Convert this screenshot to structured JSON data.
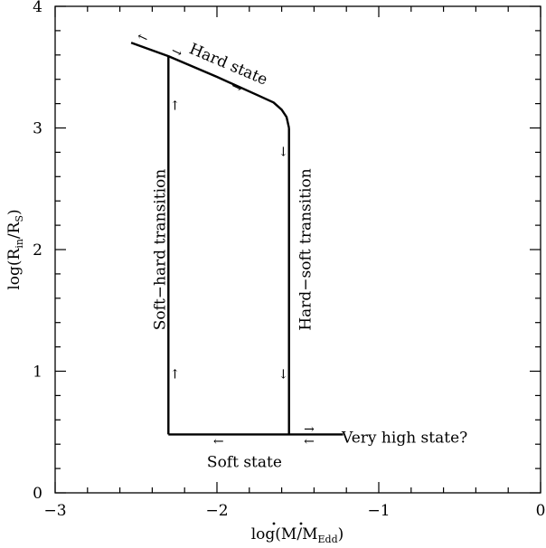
{
  "chart_data": {
    "type": "line",
    "title": "",
    "xlabel": {
      "base": "log(",
      "m1": "M",
      "slash": "/",
      "m2": "M",
      "sub": "Edd",
      "close": ")"
    },
    "ylabel": {
      "base": "log(R",
      "sub1": "in",
      "slash": "/R",
      "sub2": "S",
      "close": ")"
    },
    "xlim": [
      -3,
      0
    ],
    "ylim": [
      0,
      4
    ],
    "x_ticks": [
      -3,
      -2,
      -1,
      0
    ],
    "x_tick_labels": [
      "−3",
      "−2",
      "−1",
      "0"
    ],
    "y_ticks": [
      0,
      1,
      2,
      3,
      4
    ],
    "y_tick_labels": [
      "0",
      "1",
      "2",
      "3",
      "4"
    ],
    "curves": [
      {
        "id": "hard-state-curve",
        "points": [
          [
            -2.53,
            3.7
          ],
          [
            -2.3,
            3.59
          ],
          [
            -2.0,
            3.42
          ],
          [
            -1.75,
            3.27
          ],
          [
            -1.65,
            3.21
          ],
          [
            -1.6,
            3.15
          ],
          [
            -1.57,
            3.09
          ],
          [
            -1.555,
            3.0
          ]
        ]
      },
      {
        "id": "soft-hard-transition-line",
        "points": [
          [
            -2.3,
            3.59
          ],
          [
            -2.3,
            0.48
          ]
        ]
      },
      {
        "id": "hard-soft-transition-line",
        "points": [
          [
            -1.555,
            3.0
          ],
          [
            -1.555,
            0.48
          ]
        ]
      },
      {
        "id": "soft-state-line",
        "points": [
          [
            -2.3,
            0.48
          ],
          [
            -1.22,
            0.48
          ]
        ]
      }
    ],
    "arrows": [
      {
        "id": "arrow-hard-left",
        "glyph": "←",
        "x": -2.46,
        "y": 3.74,
        "rot": 25
      },
      {
        "id": "arrow-hard-right-1",
        "glyph": "→",
        "x": -2.25,
        "y": 3.62,
        "rot": 25
      },
      {
        "id": "arrow-hard-right-2",
        "glyph": "→",
        "x": -1.88,
        "y": 3.33,
        "rot": 25
      },
      {
        "id": "arrow-soft-hard-up-top",
        "glyph": "↑",
        "x": -2.26,
        "y": 3.18,
        "rot": 0
      },
      {
        "id": "arrow-soft-hard-up-bottom",
        "glyph": "↑",
        "x": -2.26,
        "y": 0.97,
        "rot": 0
      },
      {
        "id": "arrow-hard-soft-down-top",
        "glyph": "↓",
        "x": -1.59,
        "y": 2.8,
        "rot": 0
      },
      {
        "id": "arrow-hard-soft-down-bottom",
        "glyph": "↓",
        "x": -1.59,
        "y": 0.97,
        "rot": 0
      },
      {
        "id": "arrow-soft-left-1",
        "glyph": "←",
        "x": -1.99,
        "y": 0.42,
        "rot": 0
      },
      {
        "id": "arrow-soft-left-2",
        "glyph": "←",
        "x": -1.43,
        "y": 0.42,
        "rot": 0
      },
      {
        "id": "arrow-vhs-right",
        "glyph": "→",
        "x": -1.43,
        "y": 0.52,
        "rot": 0
      }
    ],
    "annotations": [
      {
        "id": "label-hard-state",
        "text": "Hard state",
        "x": -1.93,
        "y": 3.52,
        "rot": 23,
        "anchor": "middle"
      },
      {
        "id": "label-soft-hard-transition",
        "text": "Soft−hard transition",
        "x": -2.35,
        "y": 2.0,
        "rot": -90,
        "anchor": "middle"
      },
      {
        "id": "label-hard-soft-transition",
        "text": "Hard−soft transition",
        "x": -1.45,
        "y": 2.0,
        "rot": -90,
        "anchor": "middle"
      },
      {
        "id": "label-soft-state",
        "text": "Soft state",
        "x": -1.83,
        "y": 0.25,
        "rot": 0,
        "anchor": "middle"
      },
      {
        "id": "label-very-high-state",
        "text": "Very high state?",
        "x": -0.84,
        "y": 0.45,
        "rot": 0,
        "anchor": "middle"
      }
    ]
  }
}
